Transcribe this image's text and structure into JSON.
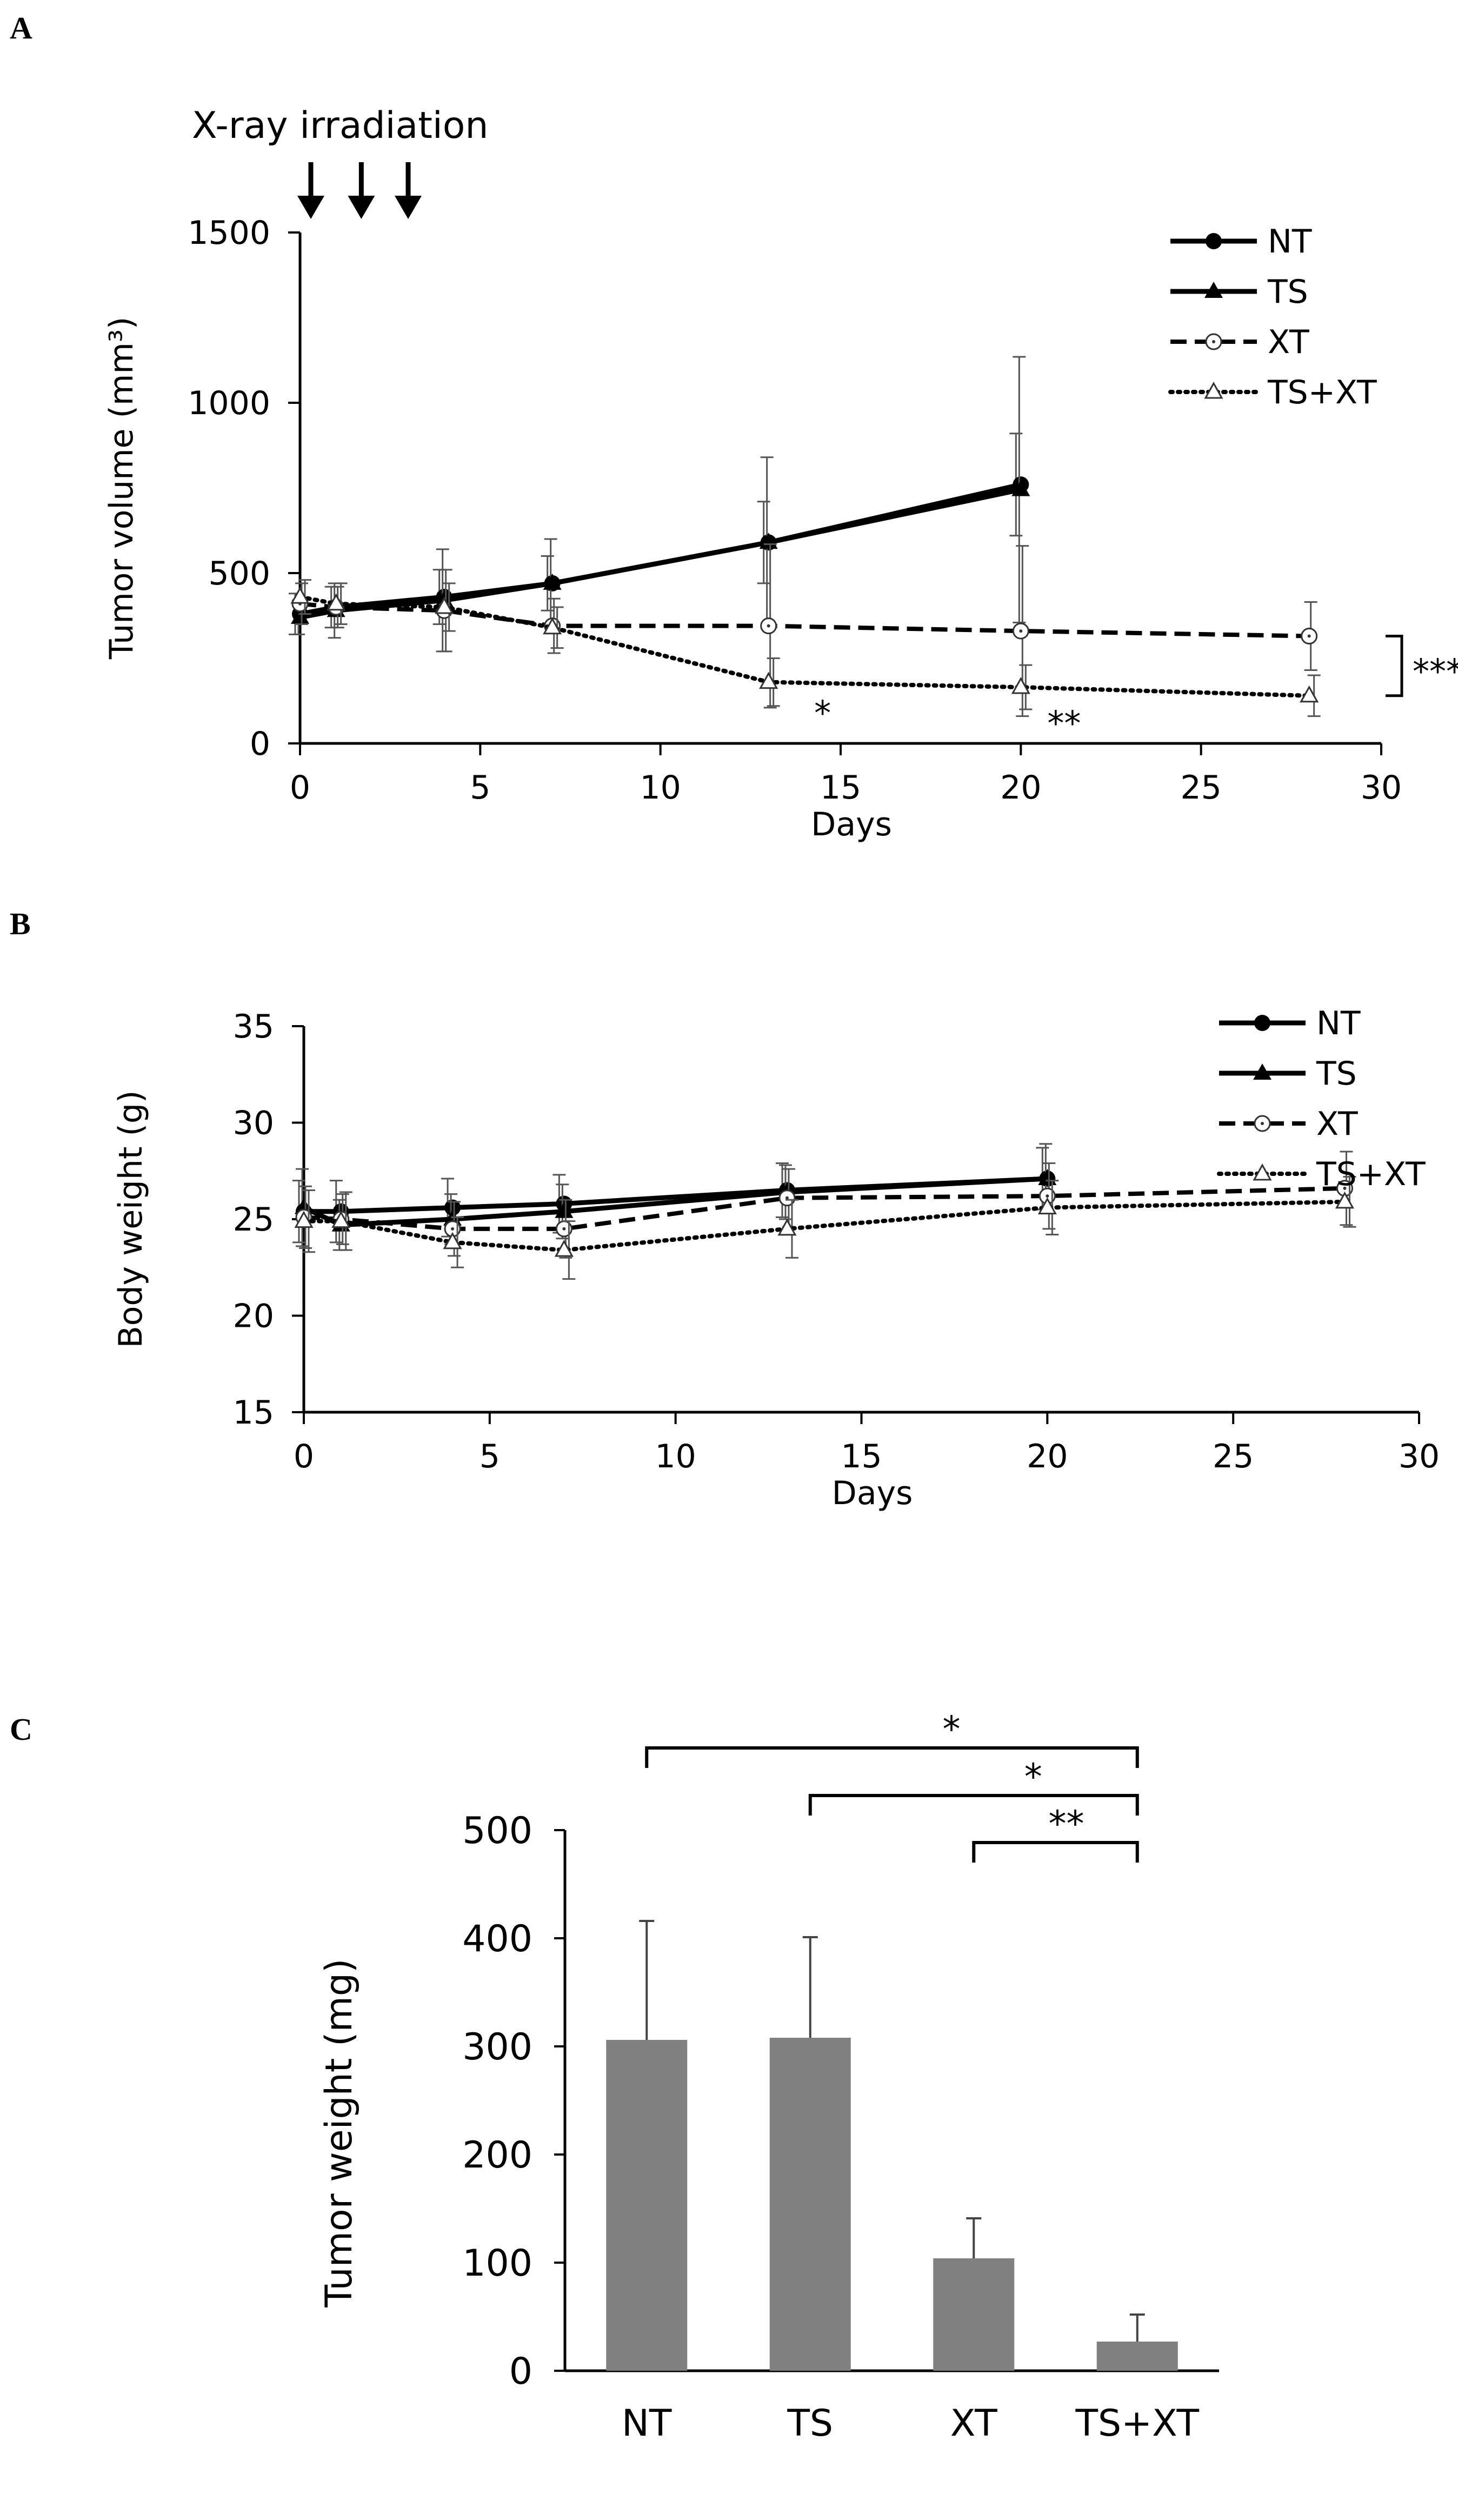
{
  "chart_data": [
    {
      "panel": "A",
      "type": "line",
      "annotation_top": "X-ray irradiation",
      "irradiation_days": [
        0.3,
        1.7,
        3.0
      ],
      "xlabel": "Days",
      "ylabel": "Tumor volume (mm³)",
      "xlim": [
        0,
        30
      ],
      "ylim": [
        0,
        1500
      ],
      "xticks": [
        0,
        5,
        10,
        15,
        20,
        25,
        30
      ],
      "yticks": [
        0,
        500,
        1000,
        1500
      ],
      "series": [
        {
          "name": "NT",
          "marker": "circle-filled",
          "line": "solid",
          "x": [
            0,
            1,
            4,
            7,
            13,
            20
          ],
          "y": [
            380,
            400,
            430,
            470,
            590,
            760
          ],
          "err": [
            60,
            60,
            80,
            80,
            120,
            150
          ]
        },
        {
          "name": "TS",
          "marker": "triangle-filled",
          "line": "solid",
          "x": [
            0,
            1,
            4,
            7,
            13,
            20
          ],
          "y": [
            370,
            390,
            420,
            470,
            590,
            745
          ],
          "err": [
            50,
            80,
            150,
            130,
            250,
            390
          ]
        },
        {
          "name": "XT",
          "marker": "circle-open",
          "line": "dashed",
          "x": [
            0,
            1,
            4,
            7,
            13,
            20,
            28
          ],
          "y": [
            410,
            400,
            390,
            345,
            345,
            330,
            315
          ],
          "err": [
            60,
            60,
            120,
            80,
            240,
            250,
            100
          ]
        },
        {
          "name": "TS+XT",
          "marker": "triangle-open",
          "line": "dotted",
          "x": [
            0,
            1,
            4,
            7,
            13,
            20,
            28
          ],
          "y": [
            430,
            410,
            400,
            340,
            180,
            165,
            140
          ],
          "err": [
            50,
            60,
            70,
            60,
            70,
            65,
            60
          ]
        }
      ],
      "significance": [
        {
          "label": "*",
          "x": 14.5,
          "y": 110
        },
        {
          "label": "**",
          "x": 21.2,
          "y": 80
        }
      ],
      "bracket_label": "***",
      "bracket_range": [
        140,
        315
      ]
    },
    {
      "panel": "B",
      "type": "line",
      "xlabel": "Days",
      "ylabel": "Body weight (g)",
      "xlim": [
        0,
        30
      ],
      "ylim": [
        15,
        35
      ],
      "xticks": [
        0,
        5,
        10,
        15,
        20,
        25,
        30
      ],
      "yticks": [
        15,
        20,
        25,
        30,
        35
      ],
      "series": [
        {
          "name": "NT",
          "marker": "circle-filled",
          "line": "solid",
          "x": [
            0,
            1,
            4,
            7,
            13,
            20
          ],
          "y": [
            25.4,
            25.4,
            25.6,
            25.8,
            26.5,
            27.1
          ],
          "err": [
            1.6,
            1.6,
            1.5,
            1.5,
            1.4,
            1.6
          ]
        },
        {
          "name": "TS",
          "marker": "triangle-filled",
          "line": "solid",
          "x": [
            0,
            1,
            4,
            7,
            13,
            20
          ],
          "y": [
            25.6,
            24.7,
            25.0,
            25.4,
            26.4,
            27.1
          ],
          "err": [
            2.0,
            1.3,
            1.3,
            1.4,
            1.4,
            1.8
          ]
        },
        {
          "name": "XT",
          "marker": "circle-open",
          "line": "dashed",
          "x": [
            0,
            1,
            4,
            7,
            13,
            20,
            28
          ],
          "y": [
            25.1,
            25.0,
            24.5,
            24.5,
            26.1,
            26.2,
            26.6
          ],
          "err": [
            1.6,
            1.3,
            1.4,
            1.5,
            1.5,
            1.7,
            1.9
          ]
        },
        {
          "name": "TS+XT",
          "marker": "triangle-open",
          "line": "dotted",
          "x": [
            0,
            1,
            4,
            7,
            13,
            20,
            28
          ],
          "y": [
            24.9,
            24.9,
            23.8,
            23.4,
            24.5,
            25.6,
            25.9
          ],
          "err": [
            1.6,
            1.5,
            1.3,
            1.5,
            1.5,
            1.4,
            1.3
          ]
        }
      ]
    },
    {
      "panel": "C",
      "type": "bar",
      "ylabel": "Tumor weight (mg)",
      "ylim": [
        0,
        500
      ],
      "yticks": [
        0,
        100,
        200,
        300,
        400,
        500
      ],
      "categories": [
        "NT",
        "TS",
        "XT",
        "TS+XT"
      ],
      "values": [
        306,
        308,
        104,
        27
      ],
      "err": [
        110,
        93,
        37,
        25
      ],
      "color": "#808080",
      "significance": [
        {
          "from": "NT",
          "to": "TS+XT",
          "label": "*"
        },
        {
          "from": "TS",
          "to": "TS+XT",
          "label": "*"
        },
        {
          "from": "XT",
          "to": "TS+XT",
          "label": "**"
        }
      ]
    }
  ],
  "panel_labels": {
    "a": "A",
    "b": "B",
    "c": "C"
  },
  "legend": [
    "NT",
    "TS",
    "XT",
    "TS+XT"
  ]
}
